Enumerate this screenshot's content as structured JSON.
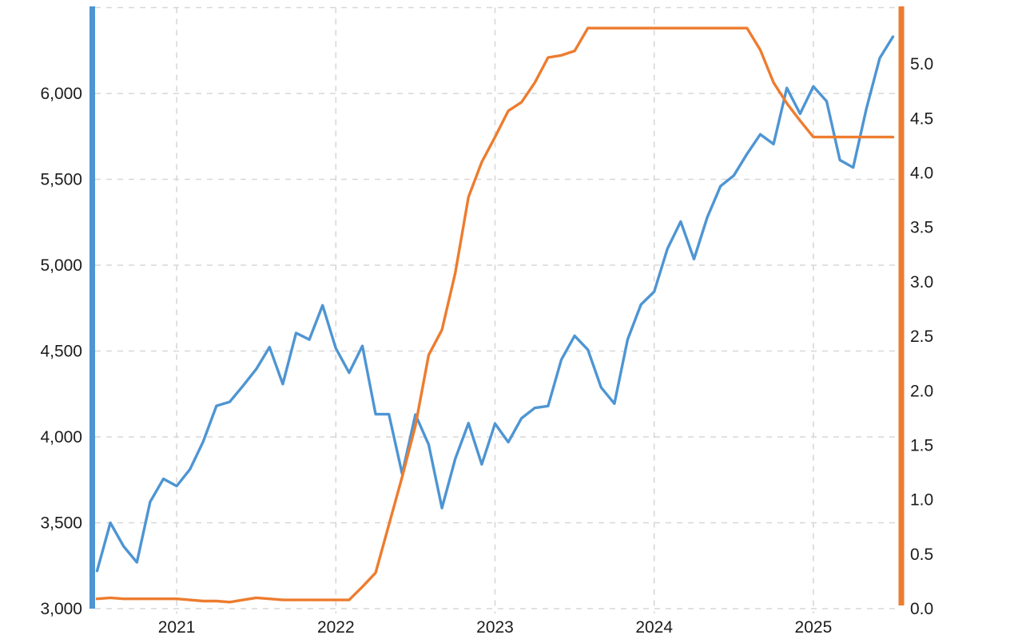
{
  "page": {
    "background": "#ffffff",
    "text_color": "#1c1c1c"
  },
  "chart_data": {
    "type": "line",
    "legend": "none",
    "grid": {
      "style": "dashed",
      "color": "#d7d7d7"
    },
    "x_axis": {
      "ticks": [
        "2021",
        "2022",
        "2023",
        "2024",
        "2025"
      ],
      "tick_month_indices": [
        6,
        18,
        30,
        42,
        54
      ]
    },
    "left_axis": {
      "color": "#4e95d3",
      "min": 3000,
      "max": 6500,
      "ticks": [
        "3,000",
        "3,500",
        "4,000",
        "4,500",
        "5,000",
        "5,500",
        "6,000"
      ],
      "tick_values": [
        3000,
        3500,
        4000,
        4500,
        5000,
        5500,
        6000
      ],
      "gridline_values": [
        3000,
        3500,
        4000,
        4500,
        5000,
        5500,
        6000,
        6500
      ]
    },
    "right_axis": {
      "color": "#ed7c2f",
      "min": 0.0,
      "max": 5.5,
      "ticks": [
        "0.0",
        "0.5",
        "1.0",
        "1.5",
        "2.0",
        "2.5",
        "3.0",
        "3.5",
        "4.0",
        "4.5",
        "5.0"
      ],
      "tick_values": [
        0.0,
        0.5,
        1.0,
        1.5,
        2.0,
        2.5,
        3.0,
        3.5,
        4.0,
        4.5,
        5.0
      ]
    },
    "months": [
      "2020-07",
      "2020-08",
      "2020-09",
      "2020-10",
      "2020-11",
      "2020-12",
      "2021-01",
      "2021-02",
      "2021-03",
      "2021-04",
      "2021-05",
      "2021-06",
      "2021-07",
      "2021-08",
      "2021-09",
      "2021-10",
      "2021-11",
      "2021-12",
      "2022-01",
      "2022-02",
      "2022-03",
      "2022-04",
      "2022-05",
      "2022-06",
      "2022-07",
      "2022-08",
      "2022-09",
      "2022-10",
      "2022-11",
      "2022-12",
      "2023-01",
      "2023-02",
      "2023-03",
      "2023-04",
      "2023-05",
      "2023-06",
      "2023-07",
      "2023-08",
      "2023-09",
      "2023-10",
      "2023-11",
      "2023-12",
      "2024-01",
      "2024-02",
      "2024-03",
      "2024-04",
      "2024-05",
      "2024-06",
      "2024-07",
      "2024-08",
      "2024-09",
      "2024-10",
      "2024-11",
      "2024-12",
      "2025-01",
      "2025-02",
      "2025-03",
      "2025-04",
      "2025-05",
      "2025-06",
      "2025-07"
    ],
    "series": [
      {
        "id": "blue-index-series",
        "axis": "left",
        "color": "#4e95d3",
        "values": [
          3220,
          3500,
          3363,
          3270,
          3622,
          3756,
          3714,
          3811,
          3973,
          4181,
          4204,
          4297,
          4395,
          4523,
          4308,
          4605,
          4567,
          4766,
          4516,
          4374,
          4530,
          4132,
          4132,
          3785,
          4130,
          3955,
          3586,
          3872,
          4080,
          3840,
          4077,
          3970,
          4109,
          4169,
          4180,
          4450,
          4589,
          4508,
          4288,
          4194,
          4568,
          4770,
          4846,
          5096,
          5254,
          5036,
          5278,
          5460,
          5522,
          5648,
          5762,
          5705,
          6032,
          5882,
          6041,
          5955,
          5612,
          5569,
          5912,
          6205,
          6330
        ]
      },
      {
        "id": "orange-rate-series",
        "axis": "right",
        "color": "#ed7c2f",
        "values": [
          0.09,
          0.1,
          0.09,
          0.09,
          0.09,
          0.09,
          0.09,
          0.08,
          0.07,
          0.07,
          0.06,
          0.08,
          0.1,
          0.09,
          0.08,
          0.08,
          0.08,
          0.08,
          0.08,
          0.08,
          0.2,
          0.33,
          0.77,
          1.21,
          1.68,
          2.33,
          2.56,
          3.08,
          3.78,
          4.1,
          4.33,
          4.57,
          4.65,
          4.83,
          5.06,
          5.08,
          5.12,
          5.33,
          5.33,
          5.33,
          5.33,
          5.33,
          5.33,
          5.33,
          5.33,
          5.33,
          5.33,
          5.33,
          5.33,
          5.33,
          5.13,
          4.83,
          4.64,
          4.48,
          4.33,
          4.33,
          4.33,
          4.33,
          4.33,
          4.33,
          4.33
        ]
      }
    ]
  }
}
